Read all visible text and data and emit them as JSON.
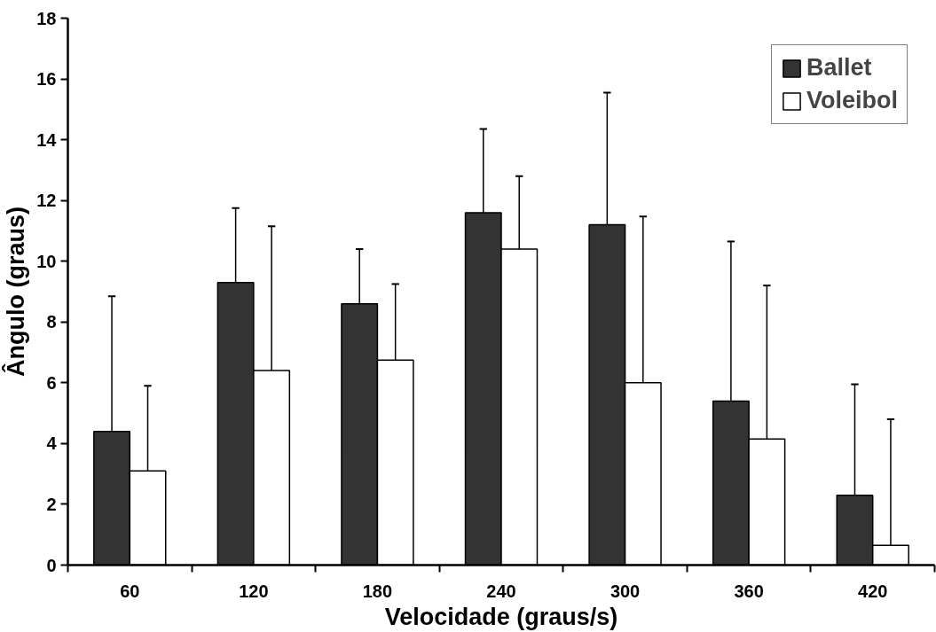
{
  "chart_data": {
    "type": "bar",
    "xlabel": "Velocidade (graus/s)",
    "ylabel": "Ângulo (graus)",
    "categories": [
      "60",
      "120",
      "180",
      "240",
      "300",
      "360",
      "420"
    ],
    "series": [
      {
        "name": "Ballet",
        "color": "#333333",
        "values": [
          4.4,
          9.3,
          8.6,
          11.6,
          11.2,
          5.4,
          2.3
        ],
        "errors": [
          [
            4.4,
            8.85
          ],
          [
            9.3,
            11.75
          ],
          [
            8.6,
            10.4
          ],
          [
            11.6,
            14.35
          ],
          [
            11.2,
            15.55
          ],
          [
            5.4,
            10.65
          ],
          [
            2.3,
            5.95
          ]
        ]
      },
      {
        "name": "Voleibol",
        "color": "#ffffff",
        "values": [
          3.1,
          6.4,
          6.75,
          10.4,
          6.0,
          4.15,
          0.65
        ],
        "errors": [
          [
            3.1,
            5.9
          ],
          [
            6.4,
            11.15
          ],
          [
            6.75,
            9.25
          ],
          [
            10.4,
            12.8
          ],
          [
            6.0,
            11.47
          ],
          [
            4.15,
            9.2
          ],
          [
            0.65,
            4.8
          ]
        ]
      }
    ],
    "ylim": [
      0,
      18
    ],
    "yticks": [
      0,
      2,
      4,
      6,
      8,
      10,
      12,
      14,
      16,
      18
    ],
    "grid": false,
    "legend": "top right"
  }
}
